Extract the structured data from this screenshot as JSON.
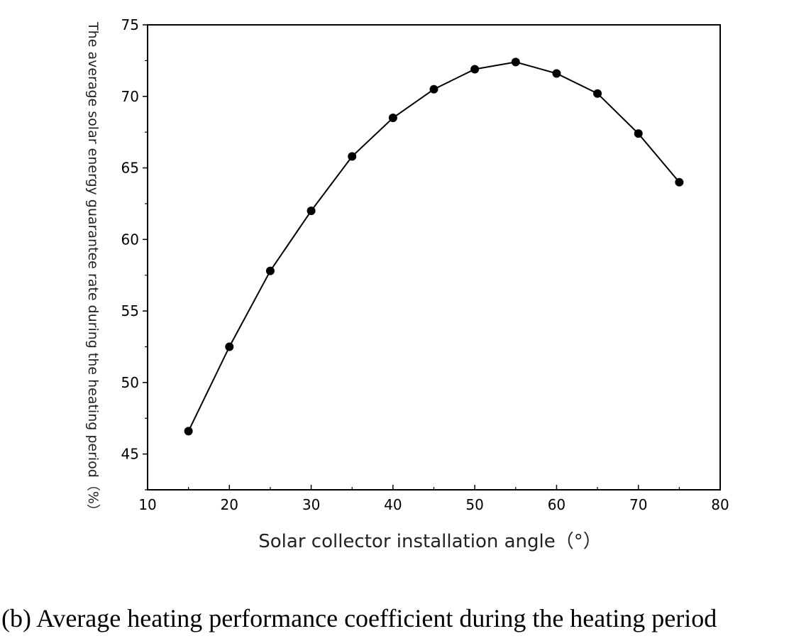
{
  "chart_data": {
    "type": "line",
    "xlabel": "Solar collector installation angle（°）",
    "ylabel": "The average solar energy guarantee rate during the heating period（%）",
    "xlim": [
      10,
      80
    ],
    "ylim": [
      42.5,
      75
    ],
    "xticks": [
      10,
      20,
      30,
      40,
      50,
      60,
      70,
      80
    ],
    "yticks": [
      45,
      50,
      55,
      60,
      65,
      70,
      75
    ],
    "grid": false,
    "marker": "circle",
    "series": [
      {
        "x": [
          15,
          20,
          25,
          30,
          35,
          40,
          45,
          50,
          55,
          60,
          65,
          70,
          75
        ],
        "values": [
          46.6,
          52.5,
          57.8,
          62.0,
          65.8,
          68.5,
          70.5,
          71.9,
          72.4,
          71.6,
          70.2,
          67.4,
          64.0
        ]
      }
    ]
  },
  "caption": "(b) Average heating performance coefficient during the heating period"
}
